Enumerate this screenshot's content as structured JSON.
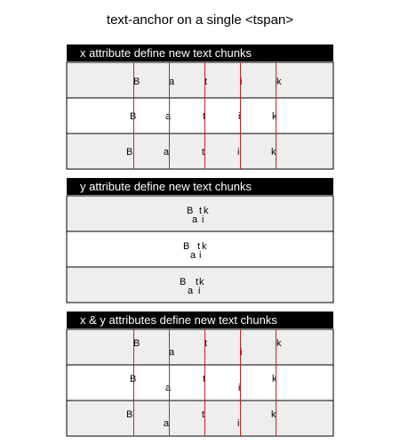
{
  "page_title": "text-anchor on a single <tspan>",
  "sections": [
    {
      "header": "x attribute define new text chunks",
      "rows": [
        [
          "B",
          "a",
          "t",
          "i",
          "k"
        ],
        [
          "B",
          "a",
          "t",
          "i",
          "k"
        ],
        [
          "B",
          "a",
          "t",
          "i",
          "k"
        ]
      ]
    },
    {
      "header": "y attribute define new text chunks",
      "rows": [
        [
          "B",
          "a",
          "t",
          "i",
          "k"
        ],
        [
          "B",
          "a",
          "t",
          "i",
          "k"
        ],
        [
          "B",
          "a",
          "t",
          "i",
          "k"
        ]
      ]
    },
    {
      "header": "x & y attributes define new text chunks",
      "rows": [
        [
          "B",
          "a",
          "t",
          "i",
          "k"
        ],
        [
          "B",
          "a",
          "t",
          "i",
          "k"
        ],
        [
          "B",
          "a",
          "t",
          "i",
          "k"
        ]
      ]
    }
  ],
  "colors": {
    "header_bg": "#000000",
    "header_text": "#ffffff",
    "row_shaded": "#eeeeee",
    "row_plain": "#ffffff",
    "border": "#000000",
    "guide_line": "#d22020"
  }
}
